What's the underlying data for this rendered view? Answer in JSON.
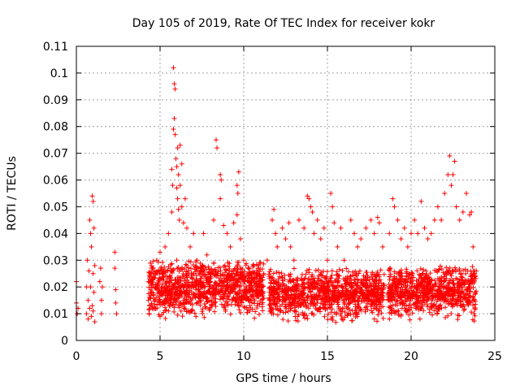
{
  "chart_data": {
    "type": "scatter",
    "title": "Day 105 of 2019, Rate Of TEC Index for receiver kokr",
    "xlabel": "GPS time / hours",
    "ylabel": "ROTI / TECUs",
    "xlim": [
      0,
      25
    ],
    "ylim": [
      0,
      0.11
    ],
    "xticks": [
      0,
      5,
      10,
      15,
      20,
      25
    ],
    "xtick_labels": [
      "0",
      "5",
      "10",
      "15",
      "20",
      "25"
    ],
    "yticks": [
      0,
      0.01,
      0.02,
      0.03,
      0.04,
      0.05,
      0.06,
      0.07,
      0.08,
      0.09,
      0.1,
      0.11
    ],
    "ytick_labels": [
      "0",
      "0.01",
      "0.02",
      "0.03",
      "0.04",
      "0.05",
      "0.06",
      "0.07",
      "0.08",
      "0.09",
      "0.1",
      "0.11"
    ],
    "grid": true,
    "marker": "+",
    "color": "#ff0000",
    "series": [
      {
        "name": "ROTI",
        "points": [
          [
            0.0,
            0.022
          ],
          [
            0.0,
            0.014
          ],
          [
            0.05,
            0.01
          ],
          [
            0.1,
            0.012
          ],
          [
            0.6,
            0.01
          ],
          [
            0.6,
            0.02
          ],
          [
            0.65,
            0.03
          ],
          [
            0.7,
            0.008
          ],
          [
            0.7,
            0.015
          ],
          [
            0.75,
            0.026
          ],
          [
            0.8,
            0.045
          ],
          [
            0.8,
            0.012
          ],
          [
            0.85,
            0.04
          ],
          [
            0.85,
            0.02
          ],
          [
            0.9,
            0.035
          ],
          [
            0.9,
            0.009
          ],
          [
            0.95,
            0.054
          ],
          [
            0.95,
            0.013
          ],
          [
            1.0,
            0.052
          ],
          [
            1.0,
            0.025
          ],
          [
            1.0,
            0.011
          ],
          [
            1.05,
            0.042
          ],
          [
            1.05,
            0.018
          ],
          [
            1.1,
            0.007
          ],
          [
            1.1,
            0.028
          ],
          [
            1.4,
            0.022
          ],
          [
            1.45,
            0.027
          ],
          [
            1.5,
            0.015
          ],
          [
            1.5,
            0.01
          ],
          [
            1.55,
            0.02
          ],
          [
            2.3,
            0.033
          ],
          [
            2.3,
            0.027
          ],
          [
            2.35,
            0.019
          ],
          [
            2.35,
            0.014
          ],
          [
            2.4,
            0.01
          ],
          [
            4.3,
            0.022
          ],
          [
            4.3,
            0.015
          ],
          [
            4.35,
            0.01
          ],
          [
            4.5,
            0.018
          ],
          [
            4.6,
            0.025
          ],
          [
            4.7,
            0.012
          ],
          [
            4.8,
            0.03
          ],
          [
            4.9,
            0.02
          ],
          [
            5.0,
            0.033
          ],
          [
            5.0,
            0.009
          ],
          [
            5.1,
            0.026
          ],
          [
            5.2,
            0.014
          ],
          [
            5.3,
            0.035
          ],
          [
            5.4,
            0.022
          ],
          [
            5.5,
            0.04
          ],
          [
            5.5,
            0.011
          ],
          [
            5.8,
            0.102
          ],
          [
            5.85,
            0.096
          ],
          [
            5.9,
            0.094
          ],
          [
            5.85,
            0.083
          ],
          [
            5.8,
            0.079
          ],
          [
            5.9,
            0.077
          ],
          [
            5.95,
            0.068
          ],
          [
            6.0,
            0.065
          ],
          [
            6.05,
            0.072
          ],
          [
            6.1,
            0.062
          ],
          [
            6.0,
            0.057
          ],
          [
            6.05,
            0.053
          ],
          [
            6.1,
            0.049
          ],
          [
            6.15,
            0.045
          ],
          [
            6.2,
            0.073
          ],
          [
            6.2,
            0.058
          ],
          [
            6.3,
            0.066
          ],
          [
            6.3,
            0.05
          ],
          [
            6.4,
            0.044
          ],
          [
            5.7,
            0.064
          ],
          [
            5.75,
            0.058
          ],
          [
            5.7,
            0.048
          ],
          [
            6.5,
            0.053
          ],
          [
            6.6,
            0.042
          ],
          [
            6.0,
            0.03
          ],
          [
            6.2,
            0.02
          ],
          [
            6.4,
            0.015
          ],
          [
            6.6,
            0.028
          ],
          [
            6.8,
            0.035
          ],
          [
            7.0,
            0.04
          ],
          [
            7.2,
            0.03
          ],
          [
            7.4,
            0.022
          ],
          [
            7.6,
            0.04
          ],
          [
            7.8,
            0.032
          ],
          [
            8.0,
            0.025
          ],
          [
            8.2,
            0.045
          ],
          [
            8.35,
            0.075
          ],
          [
            8.4,
            0.072
          ],
          [
            8.6,
            0.062
          ],
          [
            8.65,
            0.06
          ],
          [
            8.6,
            0.053
          ],
          [
            8.8,
            0.043
          ],
          [
            9.0,
            0.04
          ],
          [
            9.2,
            0.035
          ],
          [
            9.4,
            0.044
          ],
          [
            9.6,
            0.058
          ],
          [
            9.65,
            0.055
          ],
          [
            9.7,
            0.063
          ],
          [
            9.6,
            0.047
          ],
          [
            9.8,
            0.038
          ],
          [
            10.0,
            0.03
          ],
          [
            10.2,
            0.025
          ],
          [
            10.4,
            0.02
          ],
          [
            10.6,
            0.028
          ],
          [
            10.8,
            0.022
          ],
          [
            11.0,
            0.018
          ],
          [
            11.2,
            0.025
          ],
          [
            11.4,
            0.03
          ],
          [
            11.7,
            0.045
          ],
          [
            11.8,
            0.049
          ],
          [
            11.9,
            0.04
          ],
          [
            12.0,
            0.035
          ],
          [
            12.3,
            0.042
          ],
          [
            12.5,
            0.038
          ],
          [
            12.7,
            0.044
          ],
          [
            12.8,
            0.035
          ],
          [
            13.0,
            0.03
          ],
          [
            13.3,
            0.045
          ],
          [
            13.6,
            0.042
          ],
          [
            13.8,
            0.054
          ],
          [
            13.9,
            0.053
          ],
          [
            14.0,
            0.05
          ],
          [
            14.1,
            0.048
          ],
          [
            14.2,
            0.04
          ],
          [
            14.4,
            0.045
          ],
          [
            14.6,
            0.038
          ],
          [
            14.8,
            0.042
          ],
          [
            15.0,
            0.03
          ],
          [
            15.2,
            0.055
          ],
          [
            15.3,
            0.05
          ],
          [
            15.4,
            0.044
          ],
          [
            15.6,
            0.035
          ],
          [
            15.8,
            0.042
          ],
          [
            16.0,
            0.03
          ],
          [
            16.4,
            0.045
          ],
          [
            16.6,
            0.04
          ],
          [
            16.8,
            0.035
          ],
          [
            17.0,
            0.038
          ],
          [
            17.3,
            0.042
          ],
          [
            17.6,
            0.045
          ],
          [
            17.8,
            0.04
          ],
          [
            18.0,
            0.046
          ],
          [
            18.1,
            0.044
          ],
          [
            18.3,
            0.035
          ],
          [
            18.7,
            0.04
          ],
          [
            18.9,
            0.053
          ],
          [
            19.0,
            0.05
          ],
          [
            19.2,
            0.045
          ],
          [
            19.4,
            0.038
          ],
          [
            19.6,
            0.042
          ],
          [
            19.8,
            0.035
          ],
          [
            20.0,
            0.04
          ],
          [
            20.2,
            0.045
          ],
          [
            20.4,
            0.04
          ],
          [
            20.6,
            0.052
          ],
          [
            20.8,
            0.042
          ],
          [
            21.0,
            0.038
          ],
          [
            21.2,
            0.04
          ],
          [
            21.4,
            0.045
          ],
          [
            21.6,
            0.05
          ],
          [
            21.8,
            0.045
          ],
          [
            22.0,
            0.055
          ],
          [
            22.2,
            0.062
          ],
          [
            22.3,
            0.069
          ],
          [
            22.4,
            0.058
          ],
          [
            22.6,
            0.067
          ],
          [
            22.5,
            0.062
          ],
          [
            22.7,
            0.05
          ],
          [
            22.9,
            0.045
          ],
          [
            23.1,
            0.048
          ],
          [
            23.3,
            0.055
          ],
          [
            23.5,
            0.047
          ],
          [
            23.6,
            0.048
          ],
          [
            23.7,
            0.035
          ],
          [
            23.8,
            0.025
          ]
        ]
      }
    ],
    "dense_bands": [
      {
        "x": [
          4.3,
          11.2
        ],
        "y": [
          0.005,
          0.03
        ]
      },
      {
        "x": [
          11.5,
          18.4
        ],
        "y": [
          0.004,
          0.027
        ]
      },
      {
        "x": [
          18.6,
          23.9
        ],
        "y": [
          0.005,
          0.028
        ]
      }
    ]
  }
}
